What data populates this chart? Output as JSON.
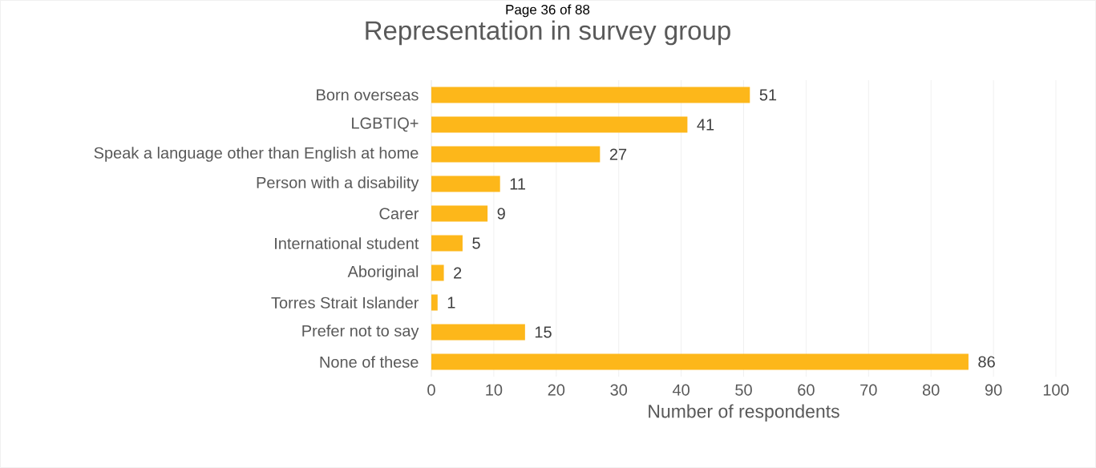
{
  "chart_data": {
    "type": "bar",
    "orientation": "horizontal",
    "title": "Representation in survey group",
    "xlabel": "Number of respondents",
    "annotations": [
      "Page 36 of 88"
    ],
    "categories": [
      "Born overseas",
      "LGBTIQ+",
      "Speak a language other than English at home",
      "Person with a disability",
      "Carer",
      "International student",
      "Aboriginal",
      "Torres Strait Islander",
      "Prefer not to say",
      "None of these"
    ],
    "values": [
      51,
      41,
      27,
      11,
      9,
      5,
      2,
      1,
      15,
      86
    ],
    "color": "#fdb71a",
    "data_labels": true,
    "grid": "x",
    "xlim": [
      0,
      100
    ],
    "xticks": [
      0,
      10,
      20,
      30,
      40,
      50,
      60,
      70,
      80,
      90,
      100
    ]
  }
}
